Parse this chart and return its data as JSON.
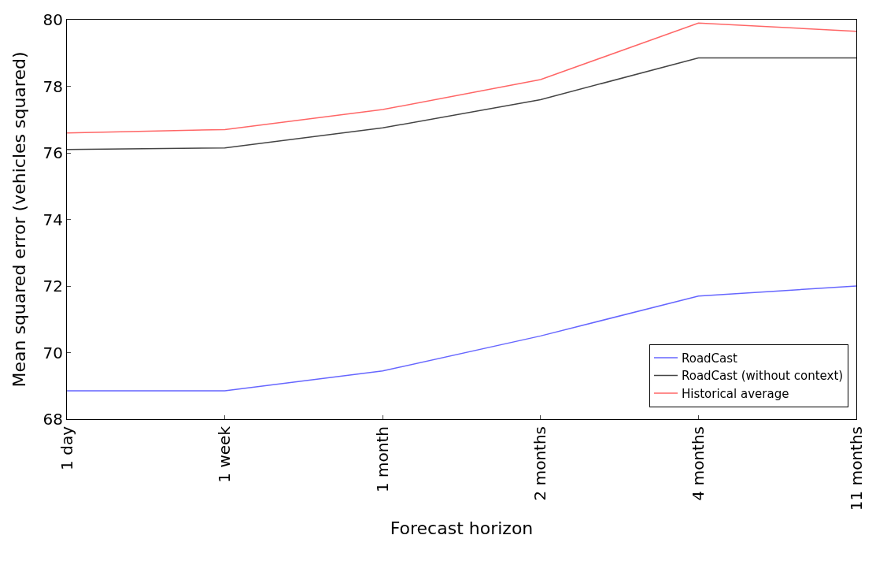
{
  "chart_data": {
    "type": "line",
    "xlabel": "Forecast horizon",
    "ylabel": "Mean squared error (vehicles squared)",
    "categories": [
      "1 day",
      "1 week",
      "1 month",
      "2 months",
      "4 months",
      "11 months"
    ],
    "ylim": [
      68,
      80
    ],
    "yticks": [
      68,
      70,
      72,
      74,
      76,
      78,
      80
    ],
    "grid": false,
    "legend": "bottom right",
    "marker": "none",
    "line_style": "solid",
    "series": [
      {
        "name": "RoadCast",
        "color": "#6666ff",
        "values": [
          68.85,
          68.85,
          69.45,
          70.5,
          71.7,
          72.0
        ]
      },
      {
        "name": "RoadCast (without context)",
        "color": "#444444",
        "values": [
          76.1,
          76.15,
          76.75,
          77.6,
          78.85,
          78.85
        ]
      },
      {
        "name": "Historical average",
        "color": "#ff6666",
        "values": [
          76.6,
          76.7,
          77.3,
          78.2,
          79.9,
          79.65
        ]
      }
    ]
  }
}
